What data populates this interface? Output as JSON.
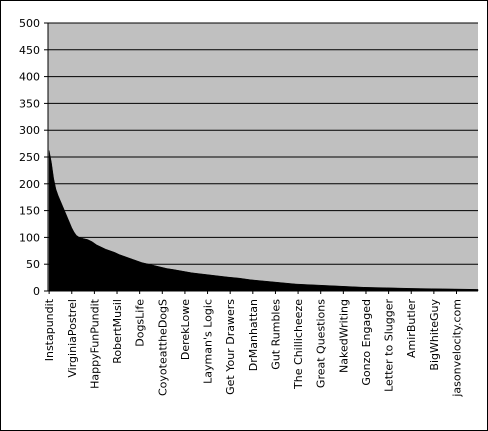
{
  "chart_data": {
    "type": "area",
    "title": "",
    "xlabel": "",
    "ylabel": "",
    "ylim": [
      0,
      500
    ],
    "yticks": [
      0,
      50,
      100,
      150,
      200,
      250,
      300,
      350,
      400,
      450,
      500
    ],
    "grid": true,
    "legend": "none",
    "plot_background": "#c0c0c0",
    "fill_color": "#000000",
    "category_labels": [
      "Instapundit",
      "VirginiaPostrel",
      "HappyFunPundit",
      "RobertMusil",
      "DogsLife",
      "CoyoteattheDogS",
      "DerekLowe",
      "Layman's Logic",
      "Get Your Drawers",
      "DrManhattan",
      "Gut Rumbles",
      "The Chillicheeze",
      "Great Questions",
      "NakedWriting",
      "Gonzo Engaged",
      "Letter to Slugger",
      "AmirButler",
      "BigWhiteGuy",
      "jasonvelocity.com"
    ],
    "label_positions": [
      1,
      11,
      21,
      31,
      41,
      51,
      61,
      71,
      81,
      91,
      101,
      111,
      121,
      131,
      141,
      151,
      161,
      171,
      181
    ],
    "total_points": 190,
    "curve_points": [
      [
        1,
        262
      ],
      [
        2,
        240
      ],
      [
        3,
        210
      ],
      [
        4,
        190
      ],
      [
        5,
        178
      ],
      [
        6,
        168
      ],
      [
        7,
        158
      ],
      [
        8,
        148
      ],
      [
        9,
        138
      ],
      [
        10,
        128
      ],
      [
        11,
        118
      ],
      [
        12,
        110
      ],
      [
        13,
        104
      ],
      [
        14,
        101
      ],
      [
        15,
        99
      ],
      [
        16,
        98
      ],
      [
        17,
        97
      ],
      [
        18,
        96
      ],
      [
        20,
        92
      ],
      [
        22,
        86
      ],
      [
        24,
        82
      ],
      [
        26,
        78
      ],
      [
        28,
        75
      ],
      [
        30,
        72
      ],
      [
        32,
        68
      ],
      [
        34,
        65
      ],
      [
        36,
        62
      ],
      [
        38,
        59
      ],
      [
        40,
        56
      ],
      [
        42,
        53
      ],
      [
        44,
        51
      ],
      [
        46,
        49
      ],
      [
        48,
        47
      ],
      [
        50,
        45
      ],
      [
        53,
        42
      ],
      [
        56,
        40
      ],
      [
        60,
        37
      ],
      [
        64,
        34
      ],
      [
        68,
        32
      ],
      [
        72,
        30
      ],
      [
        76,
        28
      ],
      [
        80,
        26
      ],
      [
        85,
        24
      ],
      [
        90,
        21
      ],
      [
        95,
        19
      ],
      [
        100,
        17
      ],
      [
        105,
        15
      ],
      [
        110,
        13
      ],
      [
        115,
        12
      ],
      [
        120,
        11
      ],
      [
        125,
        10
      ],
      [
        130,
        9
      ],
      [
        135,
        8
      ],
      [
        140,
        7
      ],
      [
        145,
        6.5
      ],
      [
        150,
        6
      ],
      [
        155,
        5.5
      ],
      [
        160,
        5
      ],
      [
        165,
        4.6
      ],
      [
        170,
        4.3
      ],
      [
        175,
        4
      ],
      [
        180,
        3.7
      ],
      [
        185,
        3.4
      ],
      [
        190,
        3
      ]
    ]
  }
}
